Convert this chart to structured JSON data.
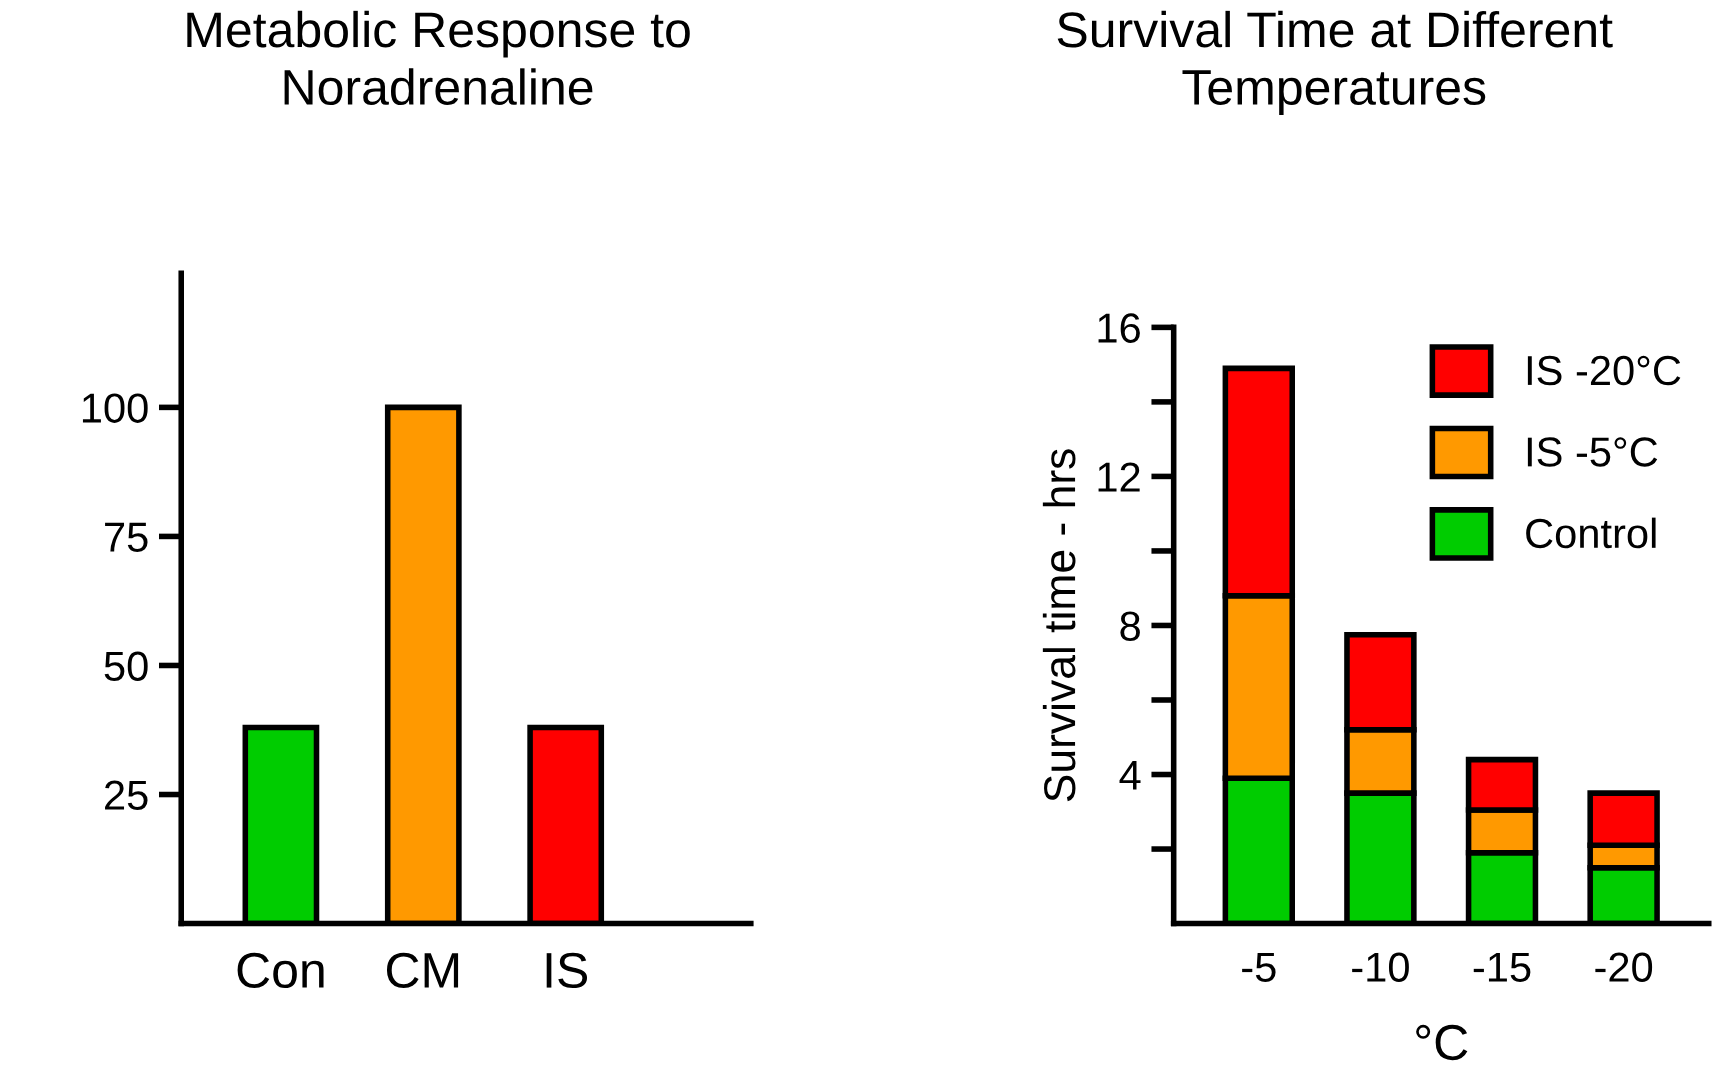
{
  "chart_data": [
    {
      "type": "bar",
      "title": "Metabolic Response to\nNoradrenaline",
      "categories": [
        "Con",
        "CM",
        "IS"
      ],
      "values": [
        38,
        100,
        38
      ],
      "colors": [
        "#00cc00",
        "#ff9900",
        "#ff0000"
      ],
      "ylim": [
        0,
        126
      ],
      "yticks": [
        25,
        50,
        75,
        100
      ],
      "grid": false
    },
    {
      "type": "bar",
      "title": "Survival Time at Different\nTemperatures",
      "xlabel": "°C",
      "ylabel": "Survival time - hrs",
      "categories": [
        "-5",
        "-10",
        "-15",
        "-20"
      ],
      "stacked": true,
      "legend": "top right",
      "grid": false,
      "ylim": [
        0,
        16
      ],
      "yticks": [
        {
          "value": 2,
          "label": null
        },
        4,
        {
          "value": 6,
          "label": null
        },
        8,
        {
          "value": 10,
          "label": null
        },
        12,
        {
          "value": 14,
          "label": null
        },
        16
      ],
      "series": [
        {
          "name": "Control",
          "color": "#00cc00",
          "values": [
            3.9,
            3.5,
            1.9,
            1.5
          ]
        },
        {
          "name": "IS -5°C",
          "color": "#ff9900",
          "values": [
            4.9,
            1.7,
            1.15,
            0.6
          ]
        },
        {
          "name": "IS -20°C",
          "color": "#ff0000",
          "values": [
            6.1,
            2.55,
            1.35,
            1.4
          ]
        }
      ]
    }
  ]
}
